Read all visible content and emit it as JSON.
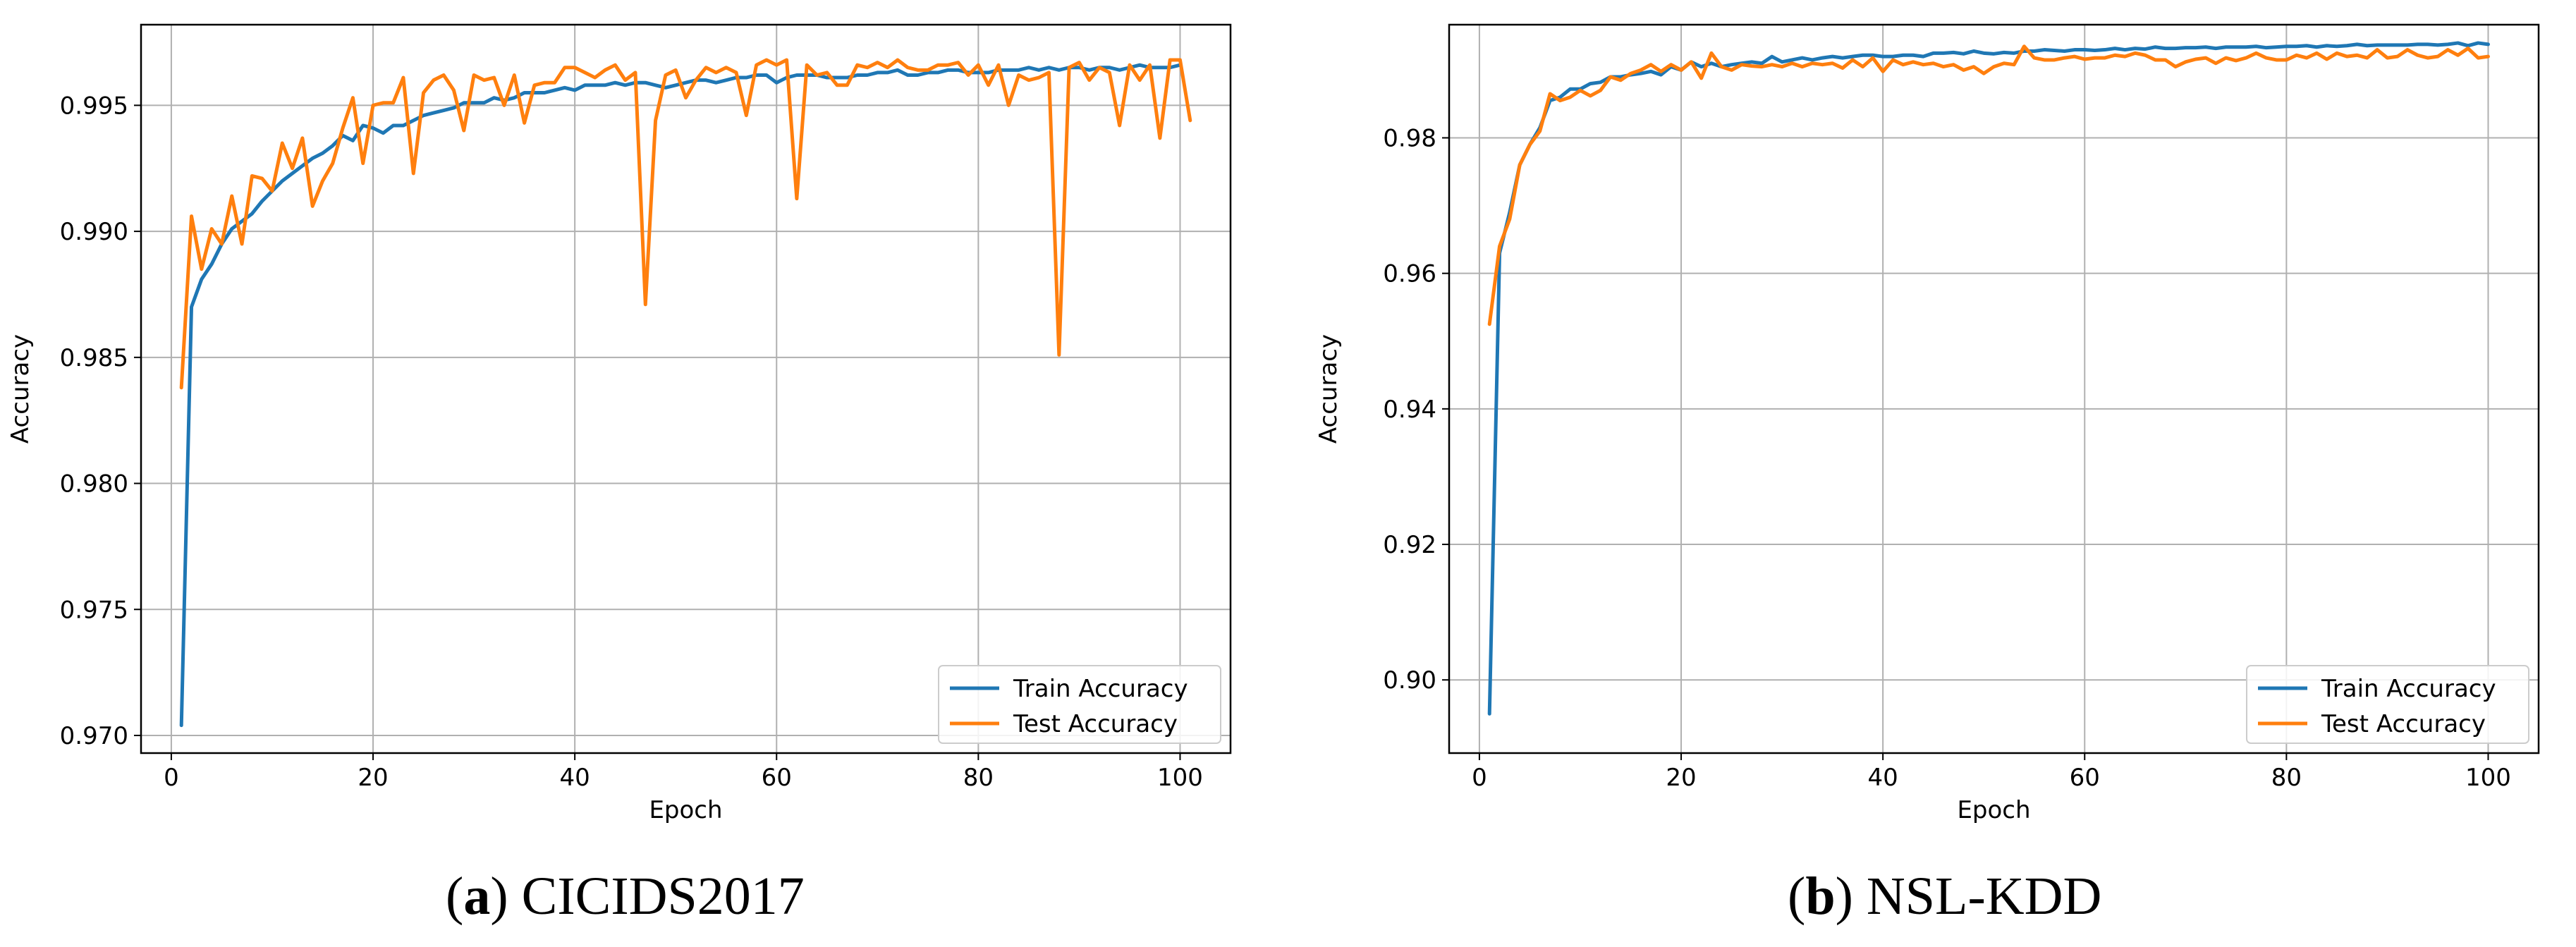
{
  "colors": {
    "train": "#1f77b4",
    "test": "#ff7f0e",
    "grid": "#b0b0b0",
    "axes": "#000000"
  },
  "captions": [
    {
      "letter": "a",
      "text": "CICIDS2017"
    },
    {
      "letter": "b",
      "text": "NSL-KDD"
    }
  ],
  "chart_data": [
    {
      "type": "line",
      "title": "",
      "xlabel": "Epoch",
      "ylabel": "Accuracy",
      "xlim": [
        -3,
        105
      ],
      "ylim": [
        0.9693,
        0.9982
      ],
      "xticks": [
        0,
        20,
        40,
        60,
        80,
        100
      ],
      "yticks": [
        0.97,
        0.975,
        0.98,
        0.985,
        0.99,
        0.995
      ],
      "ytick_labels": [
        "0.970",
        "0.975",
        "0.980",
        "0.985",
        "0.990",
        "0.995"
      ],
      "grid": true,
      "legend_position": "lower-right",
      "x_start": 1,
      "series": [
        {
          "name": "Train Accuracy",
          "color": "#1f77b4",
          "values": [
            0.9704,
            0.987,
            0.9881,
            0.9887,
            0.9895,
            0.9901,
            0.9904,
            0.9907,
            0.9912,
            0.9916,
            0.992,
            0.9923,
            0.9926,
            0.9929,
            0.9931,
            0.9934,
            0.9938,
            0.9936,
            0.9942,
            0.9941,
            0.9939,
            0.9942,
            0.9942,
            0.9944,
            0.9946,
            0.9947,
            0.9948,
            0.9949,
            0.9951,
            0.9951,
            0.9951,
            0.9953,
            0.9952,
            0.9953,
            0.9955,
            0.9955,
            0.9955,
            0.9956,
            0.9957,
            0.9956,
            0.9958,
            0.9958,
            0.9958,
            0.9959,
            0.9958,
            0.9959,
            0.9959,
            0.9958,
            0.9957,
            0.9958,
            0.9959,
            0.996,
            0.996,
            0.9959,
            0.996,
            0.9961,
            0.9961,
            0.9962,
            0.9962,
            0.9959,
            0.9961,
            0.9962,
            0.9962,
            0.9962,
            0.9961,
            0.9961,
            0.9961,
            0.9962,
            0.9962,
            0.9963,
            0.9963,
            0.9964,
            0.9962,
            0.9962,
            0.9963,
            0.9963,
            0.9964,
            0.9964,
            0.9963,
            0.9963,
            0.9963,
            0.9964,
            0.9964,
            0.9964,
            0.9965,
            0.9964,
            0.9965,
            0.9964,
            0.9965,
            0.9965,
            0.9964,
            0.9965,
            0.9965,
            0.9964,
            0.9965,
            0.9966,
            0.9965,
            0.9965,
            0.9965,
            0.9966
          ]
        },
        {
          "name": "Test Accuracy",
          "color": "#ff7f0e",
          "values": [
            0.9838,
            0.9906,
            0.9885,
            0.9901,
            0.9895,
            0.9914,
            0.9895,
            0.9922,
            0.9921,
            0.9916,
            0.9935,
            0.9925,
            0.9937,
            0.991,
            0.992,
            0.9927,
            0.9941,
            0.9953,
            0.9927,
            0.995,
            0.9951,
            0.9951,
            0.9961,
            0.9923,
            0.9955,
            0.996,
            0.9962,
            0.9956,
            0.994,
            0.9962,
            0.996,
            0.9961,
            0.995,
            0.9962,
            0.9943,
            0.9958,
            0.9959,
            0.9959,
            0.9965,
            0.9965,
            0.9963,
            0.9961,
            0.9964,
            0.9966,
            0.996,
            0.9963,
            0.9871,
            0.9944,
            0.9962,
            0.9964,
            0.9953,
            0.996,
            0.9965,
            0.9963,
            0.9965,
            0.9963,
            0.9946,
            0.9966,
            0.9968,
            0.9966,
            0.9968,
            0.9913,
            0.9966,
            0.9962,
            0.9963,
            0.9958,
            0.9958,
            0.9966,
            0.9965,
            0.9967,
            0.9965,
            0.9968,
            0.9965,
            0.9964,
            0.9964,
            0.9966,
            0.9966,
            0.9967,
            0.9962,
            0.9966,
            0.9958,
            0.9966,
            0.995,
            0.9962,
            0.996,
            0.9961,
            0.9963,
            0.9851,
            0.9965,
            0.9967,
            0.996,
            0.9965,
            0.9963,
            0.9942,
            0.9966,
            0.996,
            0.9966,
            0.9937,
            0.9968,
            0.9968,
            0.9944
          ]
        }
      ]
    },
    {
      "type": "line",
      "title": "",
      "xlabel": "Epoch",
      "ylabel": "Accuracy",
      "xlim": [
        -3,
        105
      ],
      "ylim": [
        0.8892,
        0.9967
      ],
      "xticks": [
        0,
        20,
        40,
        60,
        80,
        100
      ],
      "yticks": [
        0.9,
        0.92,
        0.94,
        0.96,
        0.98
      ],
      "ytick_labels": [
        "0.90",
        "0.92",
        "0.94",
        "0.96",
        "0.98"
      ],
      "grid": true,
      "legend_position": "lower-right",
      "x_start": 1,
      "series": [
        {
          "name": "Train Accuracy",
          "color": "#1f77b4",
          "values": [
            0.895,
            0.963,
            0.969,
            0.976,
            0.979,
            0.9815,
            0.9855,
            0.986,
            0.9872,
            0.9872,
            0.988,
            0.9882,
            0.989,
            0.989,
            0.9893,
            0.9895,
            0.9898,
            0.9893,
            0.9905,
            0.99,
            0.9912,
            0.9905,
            0.991,
            0.9905,
            0.9908,
            0.991,
            0.9912,
            0.991,
            0.992,
            0.9912,
            0.9915,
            0.9918,
            0.9915,
            0.9918,
            0.992,
            0.9918,
            0.992,
            0.9922,
            0.9922,
            0.992,
            0.992,
            0.9922,
            0.9922,
            0.992,
            0.9925,
            0.9925,
            0.9926,
            0.9924,
            0.9928,
            0.9925,
            0.9924,
            0.9926,
            0.9925,
            0.9928,
            0.9928,
            0.993,
            0.9929,
            0.9928,
            0.993,
            0.993,
            0.9929,
            0.993,
            0.9932,
            0.993,
            0.9932,
            0.9931,
            0.9934,
            0.9932,
            0.9932,
            0.9933,
            0.9933,
            0.9934,
            0.9932,
            0.9934,
            0.9934,
            0.9934,
            0.9935,
            0.9933,
            0.9934,
            0.9935,
            0.9935,
            0.9936,
            0.9934,
            0.9936,
            0.9935,
            0.9936,
            0.9938,
            0.9936,
            0.9937,
            0.9937,
            0.9937,
            0.9937,
            0.9938,
            0.9938,
            0.9937,
            0.9938,
            0.994,
            0.9936,
            0.994,
            0.9938
          ]
        },
        {
          "name": "Test Accuracy",
          "color": "#ff7f0e",
          "values": [
            0.9525,
            0.964,
            0.968,
            0.976,
            0.979,
            0.981,
            0.9865,
            0.9855,
            0.986,
            0.987,
            0.9862,
            0.987,
            0.989,
            0.9885,
            0.9895,
            0.99,
            0.9908,
            0.9898,
            0.9908,
            0.99,
            0.9912,
            0.9888,
            0.9925,
            0.9905,
            0.99,
            0.9908,
            0.9906,
            0.9905,
            0.9908,
            0.9905,
            0.991,
            0.9905,
            0.991,
            0.9908,
            0.991,
            0.9903,
            0.9915,
            0.9905,
            0.9918,
            0.9898,
            0.9915,
            0.9908,
            0.9912,
            0.9908,
            0.991,
            0.9905,
            0.9908,
            0.99,
            0.9905,
            0.9895,
            0.9905,
            0.991,
            0.9908,
            0.9935,
            0.9918,
            0.9915,
            0.9915,
            0.9918,
            0.992,
            0.9916,
            0.9918,
            0.9918,
            0.9922,
            0.992,
            0.9925,
            0.9922,
            0.9915,
            0.9915,
            0.9905,
            0.9912,
            0.9916,
            0.9918,
            0.991,
            0.9918,
            0.9914,
            0.9918,
            0.9925,
            0.9918,
            0.9915,
            0.9915,
            0.9922,
            0.9918,
            0.9925,
            0.9916,
            0.9925,
            0.992,
            0.9922,
            0.9918,
            0.993,
            0.9918,
            0.992,
            0.993,
            0.9922,
            0.9918,
            0.992,
            0.993,
            0.9922,
            0.9932,
            0.9918,
            0.992
          ]
        }
      ]
    }
  ]
}
